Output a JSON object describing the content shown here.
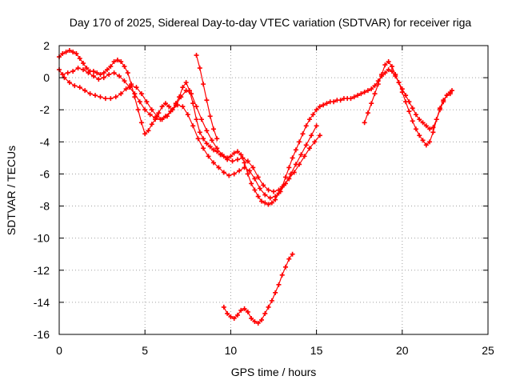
{
  "chart_data": {
    "type": "scatter",
    "title": "Day 170 of 2025, Sidereal Day-to-day VTEC variation (SDTVAR) for receiver riga",
    "xlabel": "GPS time / hours",
    "ylabel": "SDTVAR / TECUs",
    "xlim": [
      0,
      25
    ],
    "ylim": [
      -16,
      2
    ],
    "xticks": [
      0,
      5,
      10,
      15,
      20,
      25
    ],
    "yticks": [
      2,
      0,
      -2,
      -4,
      -6,
      -8,
      -10,
      -12,
      -14,
      -16
    ],
    "grid": true,
    "legend": "none",
    "marker": "plus",
    "series_color": "#ff0000",
    "series": [
      {
        "x": [
          0.0,
          0.2,
          0.4,
          0.6,
          0.8,
          1.0,
          1.2,
          1.4,
          1.6,
          1.8,
          2.0,
          2.2,
          2.4,
          2.6,
          2.8,
          3.0,
          3.2,
          3.4,
          3.6,
          3.8,
          4.0,
          4.2,
          4.4,
          4.6,
          4.8,
          5.0,
          5.2,
          5.4,
          5.6,
          5.8,
          6.0,
          6.2,
          6.4,
          6.6,
          6.8,
          7.0,
          7.2,
          7.4,
          7.6,
          7.8,
          8.0,
          8.2,
          8.4,
          8.6,
          8.8,
          9.0,
          9.2,
          9.4,
          9.6,
          9.8,
          10.0,
          10.2,
          10.4,
          10.6,
          10.8,
          11.0,
          11.2,
          11.4,
          11.6,
          11.8,
          12.0,
          12.2,
          12.4,
          12.6,
          12.8,
          13.0,
          13.2,
          13.4,
          13.6,
          13.8,
          14.0,
          14.2,
          14.4,
          14.6,
          14.8,
          15.0,
          15.2,
          15.4,
          15.6,
          15.8,
          16.0,
          16.2,
          16.4,
          16.6,
          16.8,
          17.0,
          17.2,
          17.4,
          17.6,
          17.8,
          18.0,
          18.2,
          18.4,
          18.6,
          18.8,
          19.0,
          19.2,
          19.4,
          19.6,
          19.8,
          20.0,
          20.2,
          20.4,
          20.6,
          20.8,
          21.0,
          21.2,
          21.4,
          21.6,
          21.8,
          22.0,
          22.2,
          22.4,
          22.6,
          22.8,
          22.9
        ],
        "y": [
          1.3,
          1.5,
          1.6,
          1.7,
          1.6,
          1.5,
          1.2,
          0.9,
          0.6,
          0.4,
          0.4,
          0.3,
          0.2,
          0.3,
          0.5,
          0.7,
          1.0,
          1.1,
          1.0,
          0.7,
          0.3,
          -0.4,
          -1.2,
          -2.0,
          -2.8,
          -3.5,
          -3.3,
          -2.9,
          -2.6,
          -2.2,
          -1.8,
          -1.6,
          -1.8,
          -2.0,
          -1.6,
          -1.2,
          -0.6,
          -0.3,
          -0.8,
          -1.6,
          -2.6,
          -3.4,
          -3.8,
          -4.1,
          -4.3,
          -4.5,
          -4.6,
          -4.8,
          -4.9,
          -5.0,
          -4.9,
          -4.7,
          -4.6,
          -4.8,
          -5.3,
          -6.0,
          -6.6,
          -7.0,
          -7.4,
          -7.7,
          -7.8,
          -7.9,
          -7.8,
          -7.6,
          -7.2,
          -6.8,
          -6.2,
          -5.6,
          -5.0,
          -4.5,
          -4.0,
          -3.5,
          -3.0,
          -2.6,
          -2.3,
          -2.0,
          -1.8,
          -1.7,
          -1.6,
          -1.5,
          -1.5,
          -1.4,
          -1.4,
          -1.3,
          -1.3,
          -1.3,
          -1.2,
          -1.1,
          -1.0,
          -0.9,
          -0.8,
          -0.7,
          -0.5,
          -0.2,
          0.1,
          0.3,
          0.5,
          0.4,
          0.1,
          -0.3,
          -0.7,
          -1.1,
          -1.5,
          -1.9,
          -2.3,
          -2.6,
          -2.8,
          -3.0,
          -3.2,
          -3.1,
          -2.6,
          -2.0,
          -1.5,
          -1.1,
          -0.9,
          -0.8
        ]
      },
      {
        "x": [
          0.0,
          0.3,
          0.6,
          0.9,
          1.2,
          1.5,
          1.8,
          2.1,
          2.4,
          2.7,
          3.0,
          3.3,
          3.6,
          3.9,
          4.2,
          4.5,
          4.8,
          5.1,
          5.4,
          5.7,
          6.0,
          6.3,
          6.6,
          6.9,
          7.2,
          7.5,
          7.8,
          8.1,
          8.4,
          8.7,
          9.0,
          9.3,
          9.6,
          9.9,
          10.2,
          10.5,
          10.8,
          11.1,
          11.4,
          11.7,
          12.0,
          12.3,
          12.6,
          12.9,
          13.2,
          13.5,
          13.8,
          14.1,
          14.4,
          14.7,
          15.0
        ],
        "y": [
          0.5,
          0.0,
          -0.3,
          -0.5,
          -0.6,
          -0.8,
          -1.0,
          -1.1,
          -1.2,
          -1.3,
          -1.3,
          -1.2,
          -1.0,
          -0.7,
          -0.5,
          -0.6,
          -1.0,
          -1.5,
          -2.0,
          -2.4,
          -2.6,
          -2.4,
          -2.0,
          -1.7,
          -1.8,
          -2.3,
          -3.0,
          -3.8,
          -4.4,
          -4.9,
          -5.3,
          -5.6,
          -5.9,
          -6.1,
          -6.0,
          -5.8,
          -5.6,
          -5.8,
          -6.3,
          -6.9,
          -7.3,
          -7.5,
          -7.4,
          -7.1,
          -6.6,
          -6.0,
          -5.4,
          -4.8,
          -4.2,
          -3.6,
          -3.0
        ]
      },
      {
        "x": [
          0.2,
          0.5,
          0.8,
          1.1,
          1.4,
          1.7,
          2.0,
          2.3,
          2.6,
          2.9,
          3.2,
          3.5,
          3.8,
          4.1,
          4.4,
          4.7,
          5.0,
          5.3,
          5.6,
          5.9,
          6.2,
          6.5,
          6.8,
          7.1,
          7.4,
          7.7,
          8.0,
          8.3,
          8.6,
          8.9,
          9.2,
          9.5,
          9.8,
          10.1,
          10.4,
          10.7,
          11.0,
          11.3,
          11.6,
          11.9,
          12.2,
          12.5,
          12.8,
          13.1,
          13.4,
          13.7,
          14.0,
          14.3,
          14.6,
          14.9,
          15.2
        ],
        "y": [
          0.2,
          0.3,
          0.4,
          0.6,
          0.5,
          0.3,
          0.1,
          -0.1,
          0.0,
          0.2,
          0.3,
          0.1,
          -0.2,
          -0.6,
          -1.0,
          -1.5,
          -2.0,
          -2.3,
          -2.5,
          -2.6,
          -2.4,
          -2.1,
          -1.7,
          -1.2,
          -0.8,
          -1.0,
          -1.8,
          -2.6,
          -3.3,
          -3.9,
          -4.4,
          -4.8,
          -5.1,
          -5.2,
          -5.1,
          -5.0,
          -5.2,
          -5.6,
          -6.2,
          -6.7,
          -7.0,
          -7.1,
          -7.0,
          -6.7,
          -6.3,
          -5.9,
          -5.4,
          -4.9,
          -4.4,
          -4.0,
          -3.6
        ]
      },
      {
        "x": [
          8.0,
          8.2,
          8.4,
          8.6,
          8.8,
          9.0,
          9.2
        ],
        "y": [
          1.4,
          0.6,
          -0.4,
          -1.4,
          -2.4,
          -3.2,
          -3.8
        ]
      },
      {
        "x": [
          17.8,
          18.0,
          18.2,
          18.4,
          18.6,
          18.8,
          19.0,
          19.2,
          19.4,
          19.6,
          19.8,
          20.0,
          20.2,
          20.4,
          20.6,
          20.8,
          21.0,
          21.2,
          21.4,
          21.6,
          21.8,
          22.0,
          22.2,
          22.4,
          22.6,
          22.8
        ],
        "y": [
          -2.8,
          -2.2,
          -1.6,
          -1.0,
          -0.4,
          0.2,
          0.8,
          1.0,
          0.7,
          0.2,
          -0.3,
          -0.9,
          -1.5,
          -2.1,
          -2.7,
          -3.2,
          -3.6,
          -3.9,
          -4.2,
          -4.0,
          -3.4,
          -2.6,
          -1.9,
          -1.4,
          -1.1,
          -1.0
        ]
      },
      {
        "x": [
          9.6,
          9.8,
          10.0,
          10.2,
          10.4,
          10.6,
          10.8,
          11.0,
          11.2,
          11.4,
          11.6,
          11.8,
          12.0,
          12.2,
          12.4,
          12.6,
          12.8,
          13.0,
          13.2,
          13.4,
          13.6
        ],
        "y": [
          -14.3,
          -14.7,
          -14.9,
          -15.0,
          -14.8,
          -14.5,
          -14.4,
          -14.6,
          -15.0,
          -15.2,
          -15.3,
          -15.1,
          -14.7,
          -14.3,
          -13.9,
          -13.4,
          -12.9,
          -12.3,
          -11.8,
          -11.3,
          -11.0
        ]
      }
    ]
  }
}
